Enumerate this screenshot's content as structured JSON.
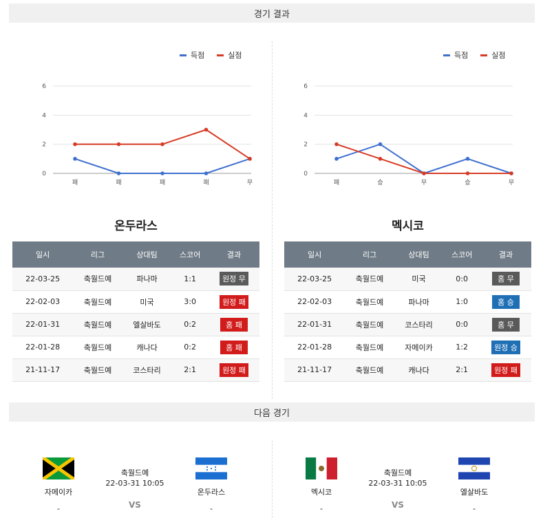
{
  "results_header": "경기 결과",
  "next_header": "다음 경기",
  "legend": {
    "scored": "득점",
    "conceded": "실점"
  },
  "colors": {
    "scored": "#3e6fcf",
    "conceded": "#d63c25",
    "draw": "#5a5a5a",
    "loss": "#d21b1b",
    "win": "#1f6fb5"
  },
  "chart_data": [
    {
      "type": "line",
      "categories": [
        "패",
        "패",
        "패",
        "패",
        "무"
      ],
      "ylim": [
        0,
        6
      ],
      "yticks": [
        0,
        2,
        4,
        6
      ],
      "grid": true,
      "legend_position": "top-right",
      "series": [
        {
          "name": "득점",
          "values": [
            1,
            0,
            0,
            0,
            1
          ]
        },
        {
          "name": "실점",
          "values": [
            2,
            2,
            2,
            3,
            1
          ]
        }
      ]
    },
    {
      "type": "line",
      "categories": [
        "패",
        "승",
        "무",
        "승",
        "무"
      ],
      "ylim": [
        0,
        6
      ],
      "yticks": [
        0,
        2,
        4,
        6
      ],
      "grid": true,
      "legend_position": "top-right",
      "series": [
        {
          "name": "득점",
          "values": [
            1,
            2,
            0,
            1,
            0
          ]
        },
        {
          "name": "실점",
          "values": [
            2,
            1,
            0,
            0,
            0
          ]
        }
      ]
    }
  ],
  "columns": [
    "일시",
    "리그",
    "상대팀",
    "스코어",
    "결과"
  ],
  "teams": [
    {
      "name": "온두라스",
      "rows": [
        {
          "date": "22-03-25",
          "league": "축월드예",
          "opp": "파나마",
          "score": "1:1",
          "result": "원정 무",
          "kind": "draw"
        },
        {
          "date": "22-02-03",
          "league": "축월드예",
          "opp": "미국",
          "score": "3:0",
          "result": "원정 패",
          "kind": "loss"
        },
        {
          "date": "22-01-31",
          "league": "축월드예",
          "opp": "엘살바도",
          "score": "0:2",
          "result": "홈 패",
          "kind": "loss"
        },
        {
          "date": "22-01-28",
          "league": "축월드예",
          "opp": "캐나다",
          "score": "0:2",
          "result": "홈 패",
          "kind": "loss"
        },
        {
          "date": "21-11-17",
          "league": "축월드예",
          "opp": "코스타리",
          "score": "2:1",
          "result": "원정 패",
          "kind": "loss"
        }
      ]
    },
    {
      "name": "멕시코",
      "rows": [
        {
          "date": "22-03-25",
          "league": "축월드예",
          "opp": "미국",
          "score": "0:0",
          "result": "홈 무",
          "kind": "draw"
        },
        {
          "date": "22-02-03",
          "league": "축월드예",
          "opp": "파나마",
          "score": "1:0",
          "result": "홈 승",
          "kind": "win"
        },
        {
          "date": "22-01-31",
          "league": "축월드예",
          "opp": "코스타리",
          "score": "0:0",
          "result": "홈 무",
          "kind": "draw"
        },
        {
          "date": "22-01-28",
          "league": "축월드예",
          "opp": "자메이카",
          "score": "1:2",
          "result": "원정 승",
          "kind": "win"
        },
        {
          "date": "21-11-17",
          "league": "축월드예",
          "opp": "캐나다",
          "score": "2:1",
          "result": "원정 패",
          "kind": "loss"
        }
      ]
    }
  ],
  "next_matches": [
    {
      "home": "자메이카",
      "away": "온두라스",
      "home_flag": "jamaica-flag",
      "away_flag": "honduras-flag",
      "league": "축월드예",
      "datetime": "22-03-31 10:05",
      "home_dash": "-",
      "away_dash": "-",
      "vs": "VS"
    },
    {
      "home": "멕시코",
      "away": "엘살바도",
      "home_flag": "mexico-flag",
      "away_flag": "el-salvador-flag",
      "league": "축월드예",
      "datetime": "22-03-31 10:05",
      "home_dash": "-",
      "away_dash": "-",
      "vs": "VS"
    }
  ]
}
